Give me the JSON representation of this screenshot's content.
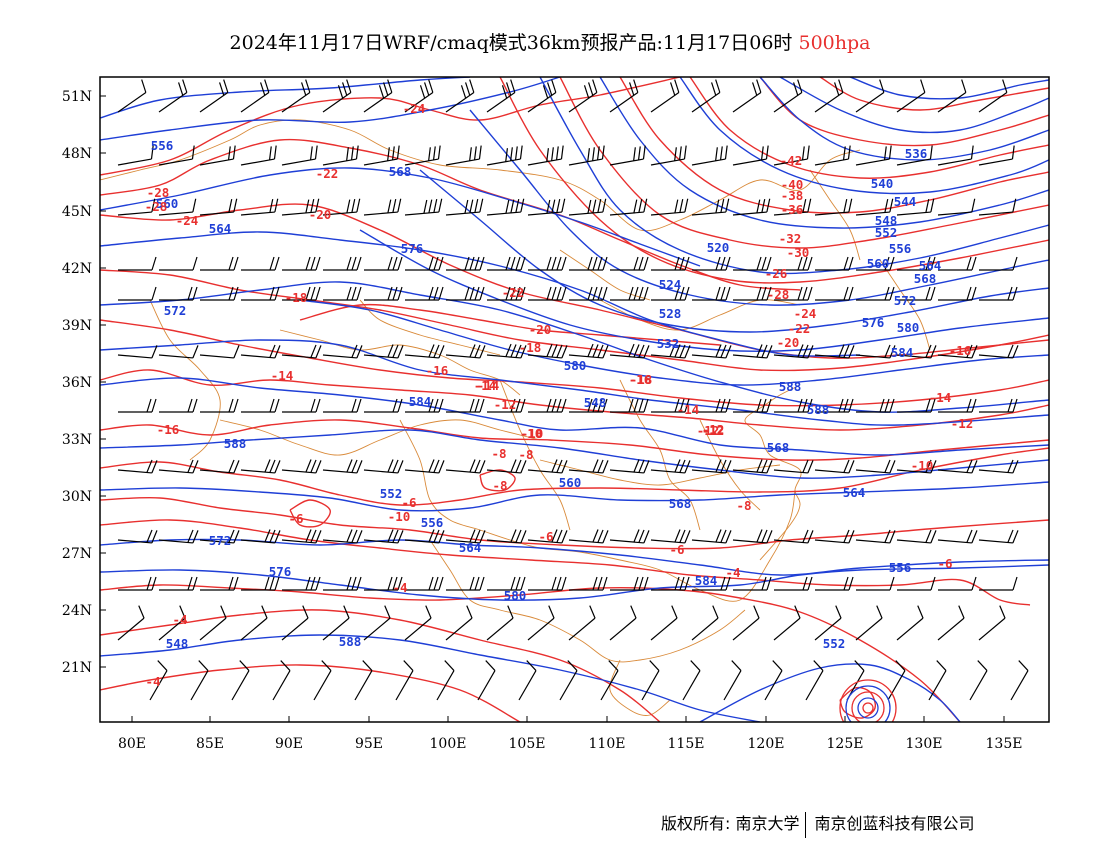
{
  "title": {
    "main": "2024年11月17日WRF/cmaq模式36km预报产品:11月17日06时",
    "level": "500hpa",
    "level_color": "#e8302f"
  },
  "axes": {
    "x_ticks": [
      "80E",
      "85E",
      "90E",
      "95E",
      "100E",
      "105E",
      "110E",
      "115E",
      "120E",
      "125E",
      "130E",
      "135E"
    ],
    "y_ticks": [
      "51N",
      "48N",
      "45N",
      "42N",
      "39N",
      "36N",
      "33N",
      "30N",
      "27N",
      "24N",
      "21N"
    ]
  },
  "colors": {
    "height_contour": "#1f3fd6",
    "temperature_contour": "#e8302f",
    "border_lines": "#d98a3a",
    "wind_barb": "#000000"
  },
  "height_labels": [
    "556",
    "560",
    "564",
    "568",
    "572",
    "576",
    "580",
    "584",
    "588",
    "548",
    "552",
    "556",
    "560",
    "564",
    "568",
    "572",
    "576",
    "580",
    "584",
    "588",
    "520",
    "524",
    "528",
    "532",
    "536",
    "540",
    "544",
    "548",
    "552",
    "556",
    "560",
    "564",
    "568",
    "572",
    "576",
    "580",
    "584",
    "588",
    "588",
    "568",
    "564",
    "556",
    "552",
    "548"
  ],
  "temperature_labels": [
    "-24",
    "-28",
    "-28",
    "-24",
    "-22",
    "-20",
    "-18",
    "-22",
    "-20",
    "-18",
    "-16",
    "-14",
    "-14",
    "-12",
    "-16",
    "-12",
    "-10",
    "-8",
    "-6",
    "-10",
    "-8",
    "-6",
    "-4",
    "-4",
    "-4",
    "-42",
    "-40",
    "-38",
    "-36",
    "-32",
    "-30",
    "-26",
    "-28",
    "-24",
    "-22",
    "-20",
    "-18",
    "-16",
    "-14",
    "-12",
    "-10",
    "-8",
    "-6",
    "-6",
    "-14",
    "-12",
    "-16",
    "-14",
    "-12",
    "-10",
    "-8",
    "-6",
    "-4"
  ],
  "footer": {
    "copyright": "版权所有: 南京大学",
    "company": "南京创蓝科技有限公司"
  }
}
